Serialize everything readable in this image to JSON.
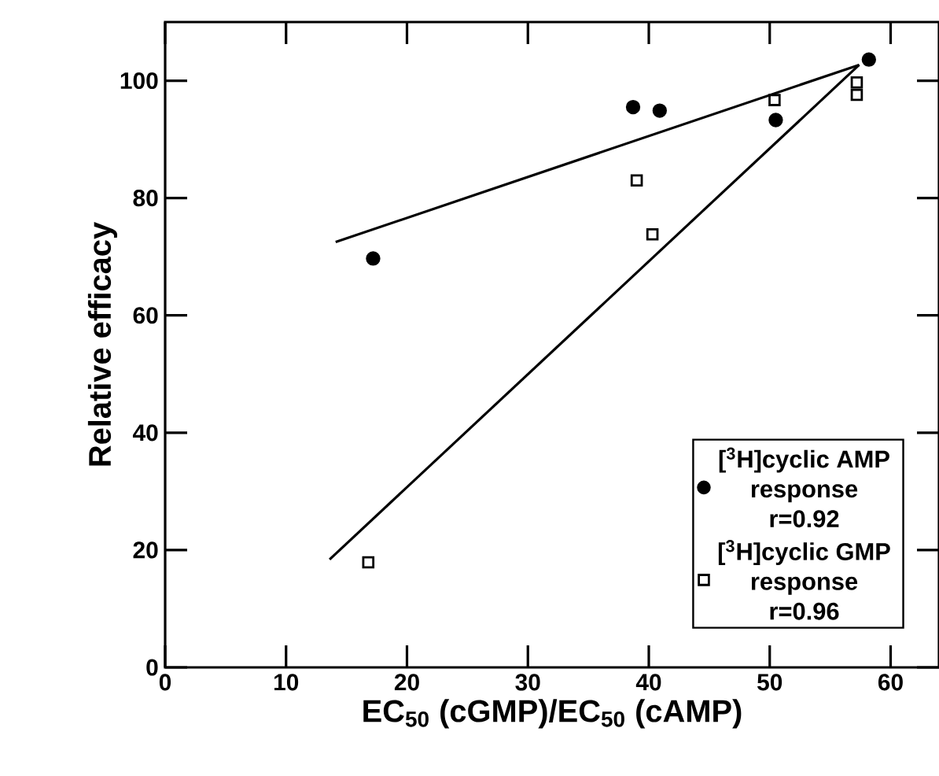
{
  "chart_data": {
    "type": "scatter",
    "xlabel": "EC$_{50}$ (cGMP)/EC$_{50}$ (cAMP)",
    "ylabel": "Relative efficacy",
    "xlim": [
      0,
      64
    ],
    "ylim": [
      0,
      110
    ],
    "xticks": [
      0,
      10,
      20,
      30,
      40,
      50,
      60
    ],
    "yticks": [
      0,
      20,
      40,
      60,
      80,
      100
    ],
    "legend": "bottom right",
    "series": [
      {
        "name": "[$^{3}$H]cyclic AMP response r=0.92",
        "type": "scatter",
        "marker": "circle",
        "color": "#000000",
        "x": [
          17.2,
          38.7,
          40.9,
          50.5,
          58.2
        ],
        "values": [
          69.7,
          95.5,
          94.9,
          93.3,
          103.6
        ]
      },
      {
        "name": "[$^{3}$H]cyclic GMP response r=0.96",
        "type": "scatter",
        "marker": "square",
        "color": "#000000",
        "x": [
          16.8,
          39.0,
          40.3,
          50.4,
          57.2,
          57.2
        ],
        "values": [
          17.9,
          83.0,
          73.8,
          96.7,
          99.7,
          97.6
        ]
      },
      {
        "type": "line",
        "color": "#000000",
        "x": [
          14.1,
          57.4
        ],
        "values": [
          72.5,
          102.7
        ]
      },
      {
        "type": "line",
        "color": "#000000",
        "x": [
          13.6,
          57.4
        ],
        "values": [
          18.4,
          102.7
        ]
      }
    ]
  }
}
